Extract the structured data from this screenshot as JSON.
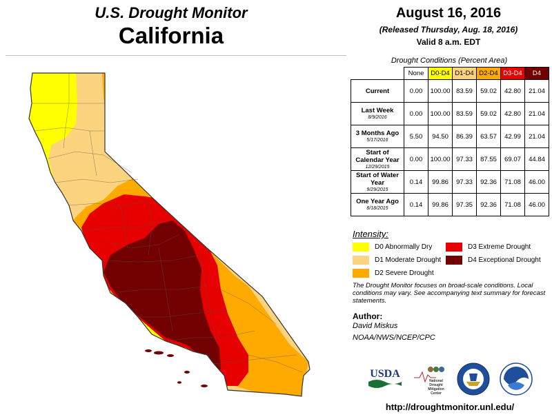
{
  "header": {
    "title": "U.S. Drought Monitor",
    "state": "California"
  },
  "release": {
    "date": "August 16, 2016",
    "released": "(Released Thursday, Aug. 18, 2016)",
    "valid": "Valid 8 a.m. EDT"
  },
  "table": {
    "caption": "Drought Conditions (Percent Area)",
    "columns": [
      "None",
      "D0-D4",
      "D1-D4",
      "D2-D4",
      "D3-D4",
      "D4"
    ],
    "column_colors": [
      "#ffffff",
      "#ffff00",
      "#fcd37f",
      "#ffaa00",
      "#e60000",
      "#730000"
    ],
    "rows": [
      {
        "label": "Current",
        "sub": "",
        "values": [
          "0.00",
          "100.00",
          "83.59",
          "59.02",
          "42.80",
          "21.04"
        ]
      },
      {
        "label": "Last Week",
        "sub": "8/9/2016",
        "values": [
          "0.00",
          "100.00",
          "83.59",
          "59.02",
          "42.80",
          "21.04"
        ]
      },
      {
        "label": "3 Months Ago",
        "sub": "5/17/2016",
        "values": [
          "5.50",
          "94.50",
          "86.39",
          "63.57",
          "42.99",
          "21.04"
        ]
      },
      {
        "label": "Start of Calendar Year",
        "sub": "12/29/2015",
        "values": [
          "0.00",
          "100.00",
          "97.33",
          "87.55",
          "69.07",
          "44.84"
        ]
      },
      {
        "label": "Start of Water Year",
        "sub": "9/29/2015",
        "values": [
          "0.14",
          "99.86",
          "97.33",
          "92.36",
          "71.08",
          "46.00"
        ]
      },
      {
        "label": "One Year Ago",
        "sub": "8/18/2015",
        "values": [
          "0.14",
          "99.86",
          "97.35",
          "92.36",
          "71.08",
          "46.00"
        ]
      }
    ]
  },
  "legend": {
    "title": "Intensity:",
    "items": [
      {
        "label": "D0 Abnormally Dry",
        "color": "#ffff00"
      },
      {
        "label": "D1 Moderate Drought",
        "color": "#fcd37f"
      },
      {
        "label": "D2 Severe Drought",
        "color": "#ffaa00"
      },
      {
        "label": "D3 Extreme Drought",
        "color": "#e60000"
      },
      {
        "label": "D4 Exceptional Drought",
        "color": "#730000"
      }
    ]
  },
  "note": "The Drought Monitor focuses on broad-scale conditions. Local conditions may vary. See accompanying text summary for forecast statements.",
  "author": {
    "heading": "Author:",
    "name": "David Miskus",
    "org": "NOAA/NWS/NCEP/CPC"
  },
  "logos": {
    "usda": "USDA",
    "ndmc_lines": [
      "National",
      "Drought",
      "Mitigation",
      "Center"
    ]
  },
  "url": "http://droughtmonitor.unl.edu/"
}
